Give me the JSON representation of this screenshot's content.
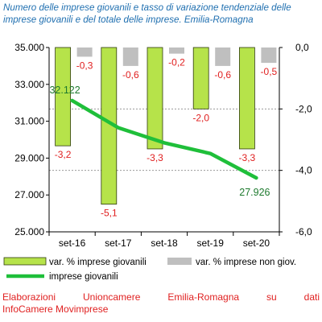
{
  "title": "Numero delle imprese giovanili e tasso di variazione tendenziale delle imprese giovanili e del totale delle imprese. Emilia-Romagna",
  "footer": {
    "line1": "Elaborazioni Unioncamere Emilia-Romagna su dati",
    "line2": "InfoCamere Movimprese"
  },
  "colors": {
    "title": "#1f6fb0",
    "bar_giovani": "#b6e34a",
    "bar_giovani_stroke": "#2f3a10",
    "bar_non_giov": "#bfbfbf",
    "line": "#1fbf3a",
    "neg_label": "#e02020",
    "pos_label": "#1e7a2e",
    "footer": "#e02020"
  },
  "chart_data": {
    "type": "bar",
    "categories": [
      "set-16",
      "set-17",
      "set-18",
      "set-19",
      "set-20"
    ],
    "y_left": {
      "ylim": [
        25000,
        35000
      ],
      "ticks": [
        "25.000",
        "27.000",
        "29.000",
        "31.000",
        "33.000",
        "35.000"
      ],
      "tick_values": [
        25000,
        27000,
        29000,
        31000,
        33000,
        35000
      ]
    },
    "y_right": {
      "ylim": [
        -6.0,
        0.0
      ],
      "ticks": [
        "-6,0",
        "-4,0",
        "-2,0",
        "0,0"
      ],
      "tick_values": [
        -6,
        -4,
        -2,
        0
      ]
    },
    "gridlines_right_axis": [
      -2,
      -4
    ],
    "series": [
      {
        "name": "var. % imprese giovanili",
        "type": "bar",
        "axis": "right",
        "values": [
          -3.2,
          -5.1,
          -3.3,
          -2.0,
          -3.3
        ],
        "labels": [
          "-3,2",
          "-5,1",
          "-3,3",
          "-2,0",
          "-3,3"
        ]
      },
      {
        "name": "var. % imprese non giov.",
        "type": "bar",
        "axis": "right",
        "values": [
          -0.3,
          -0.6,
          -0.2,
          -0.6,
          -0.5
        ],
        "labels": [
          "-0,3",
          "-0,6",
          "-0,2",
          "-0,6",
          "-0,5"
        ]
      },
      {
        "name": "imprese giovanili",
        "type": "line",
        "axis": "left",
        "values": [
          32122,
          30650,
          29830,
          29250,
          27926
        ],
        "labels": [
          "32.122",
          "",
          "",
          "",
          "27.926"
        ]
      }
    ],
    "legend_position": "bottom"
  }
}
